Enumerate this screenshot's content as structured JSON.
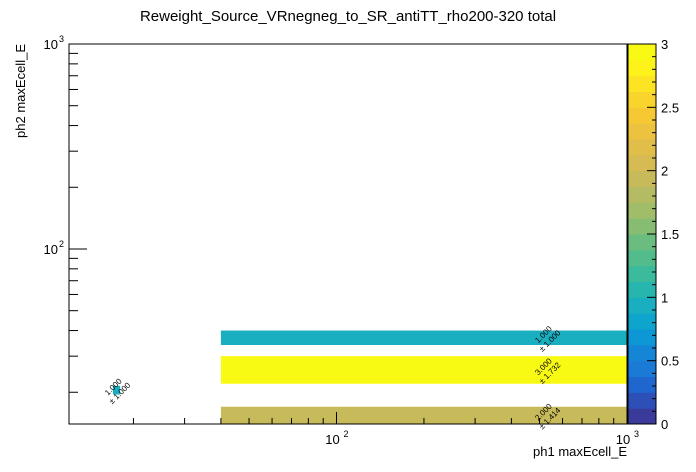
{
  "chart_data": {
    "type": "heatmap",
    "title": "Reweight_Source_VRnegneg_to_SR_antiTT_rho200-320 total",
    "xlabel": "ph1 maxEcell_E",
    "ylabel": "ph2 maxEcell_E",
    "x_scale": "log",
    "y_scale": "log",
    "xlim": [
      12,
      1000
    ],
    "ylim": [
      14,
      1000
    ],
    "x_ticks": [
      {
        "value": 100,
        "base": "10",
        "exp": "2"
      },
      {
        "value": 1000,
        "base": "10",
        "exp": "3"
      }
    ],
    "y_ticks": [
      {
        "value": 100,
        "base": "10",
        "exp": "2"
      },
      {
        "value": 1000,
        "base": "10",
        "exp": "3"
      }
    ],
    "cells": [
      {
        "x0": 40,
        "x1": 1000,
        "y0": 34,
        "y1": 40,
        "value": 1.0,
        "label": "1.000",
        "err_label": "± 1.000"
      },
      {
        "x0": 40,
        "x1": 1000,
        "y0": 22,
        "y1": 30,
        "value": 3.0,
        "label": "3.000",
        "err_label": "± 1.732"
      },
      {
        "x0": 40,
        "x1": 1000,
        "y0": 14,
        "y1": 17,
        "value": 2.0,
        "label": "2.000",
        "err_label": "± 1.414"
      },
      {
        "x0": 17,
        "x1": 18,
        "y0": 19.5,
        "y1": 21.5,
        "value": 1.0,
        "label": "1.000",
        "err_label": "± 1.000"
      }
    ],
    "colorbar": {
      "min": 0,
      "max": 3,
      "ticks": [
        {
          "value": 0,
          "label": "0"
        },
        {
          "value": 0.5,
          "label": "0.5"
        },
        {
          "value": 1,
          "label": "1"
        },
        {
          "value": 1.5,
          "label": "1.5"
        },
        {
          "value": 2,
          "label": "2"
        },
        {
          "value": 2.5,
          "label": "2.5"
        },
        {
          "value": 3,
          "label": "3"
        }
      ],
      "colors": [
        "#3a3a9a",
        "#2d4fb8",
        "#1f66cf",
        "#1a7ad6",
        "#1585d6",
        "#0d97d4",
        "#0ea5cc",
        "#1aafc0",
        "#27b6ae",
        "#3bba9c",
        "#52bc8c",
        "#6abd7e",
        "#86bd72",
        "#a1bd6a",
        "#b5bb63",
        "#c7ba5b",
        "#d5bb52",
        "#e1be49",
        "#ecc23e",
        "#f5c834",
        "#f9d42c",
        "#fce424",
        "#fdf21a",
        "#f9fa14"
      ]
    }
  }
}
